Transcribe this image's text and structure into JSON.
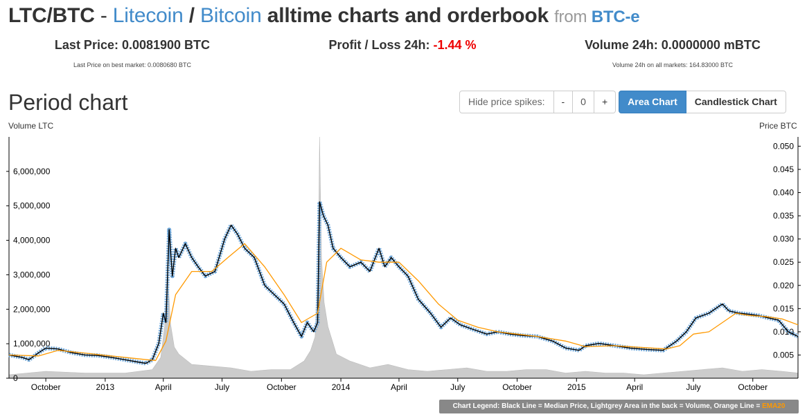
{
  "header": {
    "pair": "LTC/BTC",
    "dash": " - ",
    "base_name": "Litecoin",
    "slash": " / ",
    "quote_name": "Bitcoin",
    "title_rest": " alltime charts and orderbook ",
    "from": "from ",
    "exchange": "BTC-e"
  },
  "stats": {
    "last_price_label": "Last Price: ",
    "last_price": "0.0081900 BTC",
    "last_price_best": "Last Price on best market: 0.0080680 BTC",
    "profit_label": "Profit / Loss 24h: ",
    "profit_value": "-1.44 %",
    "volume_label": "Volume 24h: ",
    "volume_value": "0.0000000 mBTC",
    "volume_all": "Volume 24h on all markets: 164.83000 BTC"
  },
  "period": {
    "title": "Period chart",
    "hide_spikes_label": "Hide price spikes:",
    "minus_label": "-",
    "spike_value": "0",
    "plus_label": "+",
    "area_chart_label": "Area Chart",
    "candlestick_label": "Candlestick Chart"
  },
  "legend": {
    "text": "Chart Legend: Black Line = Median Price, Lightgrey Area in the back = Volume, Orange Line = ",
    "ema": "EMA20"
  },
  "colors": {
    "accent": "#428bca",
    "negative": "#ee0000",
    "ema": "#ff9900",
    "volume": "#cccccc",
    "price": "#000000",
    "price_band": "#6ea6d8"
  },
  "chart_data": {
    "type": "line",
    "ylabel_left": "Volume LTC",
    "ylabel_right": "Price BTC",
    "volume_ylim": [
      0,
      7000000
    ],
    "price_ylim": [
      0,
      0.052
    ],
    "volume_ticks": [
      0,
      1000000,
      2000000,
      3000000,
      4000000,
      5000000,
      6000000
    ],
    "volume_tick_labels": [
      "0",
      "1,000,000",
      "2,000,000",
      "3,000,000",
      "4,000,000",
      "5,000,000",
      "6,000,000"
    ],
    "price_ticks": [
      0.005,
      0.01,
      0.015,
      0.02,
      0.025,
      0.03,
      0.035,
      0.04,
      0.045,
      0.05
    ],
    "price_tick_labels": [
      "0.005",
      "0.010",
      "0.015",
      "0.020",
      "0.025",
      "0.030",
      "0.035",
      "0.040",
      "0.045",
      "0.050"
    ],
    "x_tick_labels": [
      "October",
      "2013",
      "April",
      "July",
      "October",
      "2014",
      "April",
      "July",
      "October",
      "2015",
      "April",
      "July",
      "October"
    ],
    "x_tick_dates": [
      "2012-10-01",
      "2013-01-01",
      "2013-04-01",
      "2013-07-01",
      "2013-10-01",
      "2014-01-01",
      "2014-04-01",
      "2014-07-01",
      "2014-10-01",
      "2015-01-01",
      "2015-04-01",
      "2015-07-01",
      "2015-10-01"
    ],
    "x_range": [
      "2012-08-05",
      "2015-12-10"
    ],
    "median_price": {
      "x": [
        "2012-08-05",
        "2012-08-25",
        "2012-09-05",
        "2012-09-20",
        "2012-10-01",
        "2012-10-20",
        "2012-11-10",
        "2012-12-01",
        "2012-12-20",
        "2013-01-10",
        "2013-01-31",
        "2013-02-20",
        "2013-03-05",
        "2013-03-15",
        "2013-03-25",
        "2013-04-01",
        "2013-04-05",
        "2013-04-10",
        "2013-04-15",
        "2013-04-20",
        "2013-04-25",
        "2013-05-05",
        "2013-05-15",
        "2013-05-25",
        "2013-06-05",
        "2013-06-20",
        "2013-07-05",
        "2013-07-15",
        "2013-07-25",
        "2013-08-05",
        "2013-08-20",
        "2013-09-05",
        "2013-09-20",
        "2013-10-05",
        "2013-10-20",
        "2013-11-01",
        "2013-11-10",
        "2013-11-20",
        "2013-11-26",
        "2013-11-29",
        "2013-12-05",
        "2013-12-12",
        "2013-12-20",
        "2014-01-01",
        "2014-01-15",
        "2014-02-01",
        "2014-02-15",
        "2014-03-01",
        "2014-03-10",
        "2014-03-20",
        "2014-04-01",
        "2014-04-15",
        "2014-05-01",
        "2014-05-20",
        "2014-06-05",
        "2014-06-20",
        "2014-07-05",
        "2014-07-25",
        "2014-08-15",
        "2014-09-01",
        "2014-09-20",
        "2014-10-10",
        "2014-11-01",
        "2014-11-25",
        "2014-12-15",
        "2015-01-05",
        "2015-01-15",
        "2015-02-05",
        "2015-03-01",
        "2015-03-25",
        "2015-04-20",
        "2015-05-15",
        "2015-06-05",
        "2015-06-20",
        "2015-07-05",
        "2015-07-25",
        "2015-08-15",
        "2015-08-25",
        "2015-09-10",
        "2015-09-25",
        "2015-10-10",
        "2015-10-25",
        "2015-11-10",
        "2015-11-25",
        "2015-12-10"
      ],
      "y": [
        0.005,
        0.0045,
        0.004,
        0.0055,
        0.0065,
        0.0063,
        0.0055,
        0.005,
        0.0049,
        0.0045,
        0.004,
        0.0035,
        0.0032,
        0.004,
        0.0075,
        0.014,
        0.012,
        0.032,
        0.022,
        0.028,
        0.026,
        0.029,
        0.026,
        0.024,
        0.022,
        0.023,
        0.03,
        0.033,
        0.031,
        0.028,
        0.026,
        0.02,
        0.018,
        0.016,
        0.012,
        0.009,
        0.012,
        0.01,
        0.012,
        0.038,
        0.035,
        0.033,
        0.028,
        0.026,
        0.024,
        0.025,
        0.023,
        0.028,
        0.024,
        0.026,
        0.024,
        0.022,
        0.017,
        0.014,
        0.011,
        0.013,
        0.0115,
        0.0105,
        0.0095,
        0.01,
        0.0095,
        0.0092,
        0.009,
        0.008,
        0.0065,
        0.006,
        0.007,
        0.0075,
        0.007,
        0.0065,
        0.0062,
        0.006,
        0.008,
        0.01,
        0.013,
        0.014,
        0.016,
        0.0145,
        0.014,
        0.0138,
        0.0135,
        0.013,
        0.0125,
        0.01,
        0.009
      ]
    },
    "ema20": {
      "x": [
        "2012-08-05",
        "2012-09-20",
        "2012-10-20",
        "2012-11-25",
        "2013-01-10",
        "2013-02-20",
        "2013-03-20",
        "2013-04-05",
        "2013-04-20",
        "2013-05-15",
        "2013-06-15",
        "2013-07-10",
        "2013-08-05",
        "2013-09-05",
        "2013-10-05",
        "2013-11-01",
        "2013-11-26",
        "2013-12-10",
        "2014-01-01",
        "2014-02-01",
        "2014-03-01",
        "2014-04-01",
        "2014-05-01",
        "2014-06-01",
        "2014-07-01",
        "2014-08-01",
        "2014-09-01",
        "2014-10-01",
        "2014-11-01",
        "2014-12-15",
        "2015-01-15",
        "2015-03-01",
        "2015-04-15",
        "2015-05-20",
        "2015-06-10",
        "2015-07-01",
        "2015-07-25",
        "2015-08-15",
        "2015-09-05",
        "2015-09-25",
        "2015-10-20",
        "2015-11-15",
        "2015-12-10"
      ],
      "y": [
        0.005,
        0.0048,
        0.006,
        0.0055,
        0.0048,
        0.0042,
        0.0038,
        0.008,
        0.018,
        0.023,
        0.023,
        0.026,
        0.029,
        0.024,
        0.018,
        0.012,
        0.014,
        0.025,
        0.028,
        0.0255,
        0.025,
        0.025,
        0.021,
        0.016,
        0.0125,
        0.011,
        0.01,
        0.0095,
        0.009,
        0.008,
        0.0068,
        0.007,
        0.0066,
        0.0063,
        0.007,
        0.0095,
        0.01,
        0.012,
        0.014,
        0.0135,
        0.0133,
        0.0128,
        0.0115
      ]
    },
    "volume": {
      "x": [
        "2012-08-05",
        "2012-10-01",
        "2012-12-01",
        "2013-02-01",
        "2013-03-15",
        "2013-03-28",
        "2013-04-03",
        "2013-04-08",
        "2013-04-12",
        "2013-04-18",
        "2013-04-25",
        "2013-05-15",
        "2013-06-15",
        "2013-07-15",
        "2013-08-15",
        "2013-09-15",
        "2013-10-15",
        "2013-11-05",
        "2013-11-15",
        "2013-11-22",
        "2013-11-27",
        "2013-11-29",
        "2013-12-02",
        "2013-12-06",
        "2013-12-12",
        "2013-12-25",
        "2014-01-15",
        "2014-02-15",
        "2014-03-15",
        "2014-04-15",
        "2014-05-15",
        "2014-06-15",
        "2014-07-15",
        "2014-08-15",
        "2014-09-15",
        "2014-10-15",
        "2014-11-15",
        "2014-12-15",
        "2015-01-15",
        "2015-02-15",
        "2015-03-15",
        "2015-04-15",
        "2015-05-15",
        "2015-06-15",
        "2015-07-15",
        "2015-08-15",
        "2015-09-15",
        "2015-10-15",
        "2015-11-15",
        "2015-12-10"
      ],
      "y": [
        100000,
        200000,
        150000,
        150000,
        250000,
        600000,
        1500000,
        3000000,
        1600000,
        900000,
        700000,
        400000,
        350000,
        300000,
        200000,
        250000,
        250000,
        500000,
        800000,
        1200000,
        3000000,
        7000000,
        3500000,
        2200000,
        1500000,
        700000,
        500000,
        300000,
        400000,
        250000,
        200000,
        250000,
        300000,
        200000,
        200000,
        250000,
        250000,
        150000,
        200000,
        150000,
        150000,
        100000,
        150000,
        200000,
        250000,
        300000,
        200000,
        250000,
        200000,
        150000
      ]
    }
  }
}
